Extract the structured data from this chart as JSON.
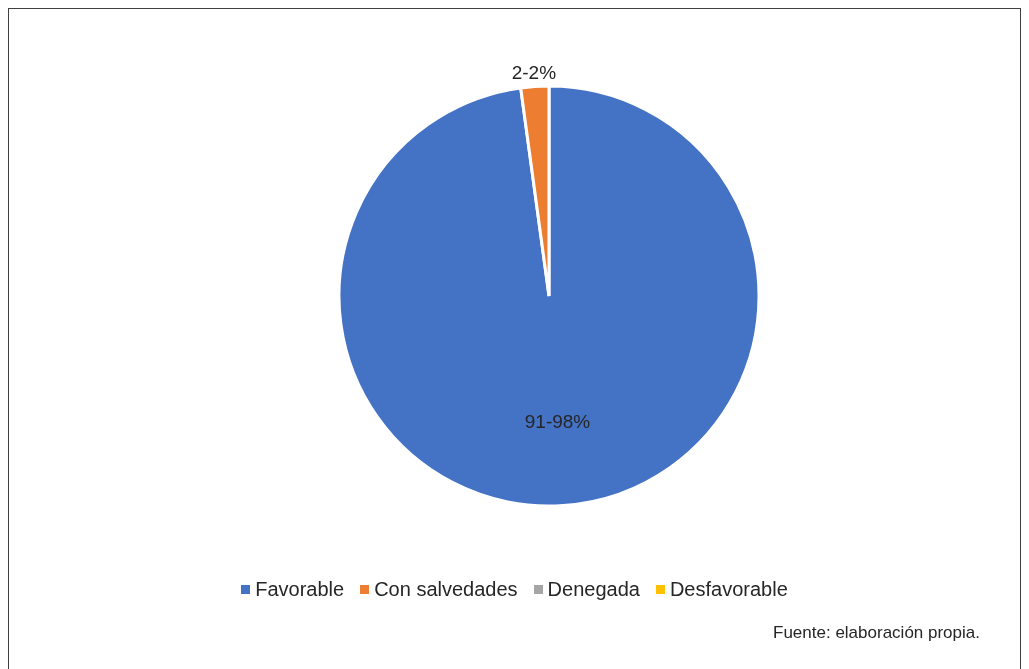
{
  "chart_data": {
    "type": "pie",
    "categories": [
      "Favorable",
      "Con salvedades",
      "Denegada",
      "Desfavorable"
    ],
    "values": [
      91,
      2,
      0,
      0
    ],
    "value_labels": [
      "91-98%",
      "2-2%",
      null,
      null
    ],
    "colors": [
      "#4472c4",
      "#ed7d31",
      "#a5a5a5",
      "#ffc000"
    ],
    "legend": "bottom",
    "annotations": [
      "Fuente: elaboración propia."
    ]
  }
}
